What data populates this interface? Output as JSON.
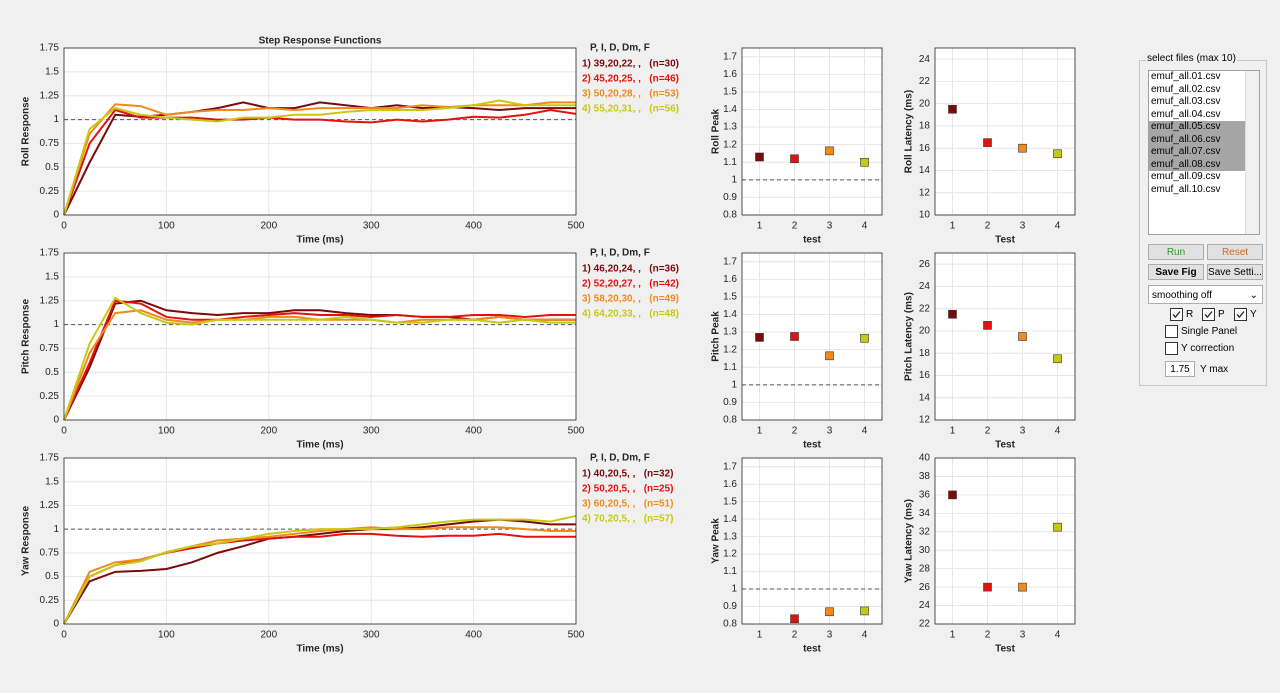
{
  "chart_data": [
    {
      "type": "line",
      "title": "Step Response Functions",
      "xlabel": "Time (ms)",
      "ylabel": "Roll Response",
      "legend_title": "P, I, D, Dm, F",
      "x": [
        0,
        25,
        50,
        75,
        100,
        125,
        150,
        175,
        200,
        225,
        250,
        275,
        300,
        325,
        350,
        375,
        400,
        425,
        450,
        475,
        500
      ],
      "series": [
        {
          "name": "1) 39,20,22, ,   (n=30)",
          "color": "#7b0a0a",
          "values": [
            0,
            0.55,
            1.05,
            1.03,
            1.05,
            1.08,
            1.12,
            1.18,
            1.12,
            1.12,
            1.18,
            1.15,
            1.12,
            1.15,
            1.12,
            1.13,
            1.12,
            1.1,
            1.12,
            1.12,
            1.12
          ]
        },
        {
          "name": "2) 45,20,25, ,   (n=46)",
          "color": "#e3120f",
          "values": [
            0,
            0.75,
            1.1,
            1.02,
            1.02,
            1.02,
            1.0,
            1.0,
            1.02,
            1.0,
            1.0,
            0.98,
            0.97,
            1.0,
            0.98,
            1.0,
            1.03,
            1.02,
            1.05,
            1.1,
            1.06
          ]
        },
        {
          "name": "3) 50,20,28, ,   (n=53)",
          "color": "#f08a1c",
          "values": [
            0,
            0.85,
            1.16,
            1.14,
            1.05,
            1.08,
            1.1,
            1.1,
            1.12,
            1.1,
            1.12,
            1.12,
            1.12,
            1.12,
            1.15,
            1.13,
            1.15,
            1.15,
            1.15,
            1.18,
            1.18
          ]
        },
        {
          "name": "4) 55,20,31, ,   (n=56)",
          "color": "#c8c814",
          "values": [
            0,
            0.9,
            1.12,
            1.05,
            1.02,
            1.0,
            0.98,
            1.02,
            1.02,
            1.05,
            1.05,
            1.08,
            1.1,
            1.1,
            1.1,
            1.12,
            1.15,
            1.2,
            1.15,
            1.15,
            1.15
          ]
        }
      ],
      "xlim": [
        0,
        500
      ],
      "ylim": [
        0,
        1.75
      ],
      "xticks": [
        0,
        100,
        200,
        300,
        400,
        500
      ],
      "yticks": [
        0,
        0.25,
        0.5,
        0.75,
        1,
        1.25,
        1.5,
        1.75
      ],
      "grid": true,
      "refline": 1
    },
    {
      "type": "line",
      "xlabel": "Time (ms)",
      "ylabel": "Pitch Response",
      "legend_title": "P, I, D, Dm, F",
      "x": [
        0,
        25,
        50,
        75,
        100,
        125,
        150,
        175,
        200,
        225,
        250,
        275,
        300,
        325,
        350,
        375,
        400,
        425,
        450,
        475,
        500
      ],
      "series": [
        {
          "name": "1) 46,20,24, ,   (n=36)",
          "color": "#7b0a0a",
          "values": [
            0,
            0.55,
            1.22,
            1.25,
            1.15,
            1.12,
            1.1,
            1.12,
            1.12,
            1.15,
            1.15,
            1.12,
            1.1,
            1.1,
            1.08,
            1.08,
            1.05,
            1.08,
            1.05,
            1.05,
            1.05
          ]
        },
        {
          "name": "2) 52,20,27, ,   (n=42)",
          "color": "#e3120f",
          "values": [
            0,
            0.6,
            1.25,
            1.22,
            1.08,
            1.05,
            1.05,
            1.08,
            1.1,
            1.12,
            1.1,
            1.1,
            1.08,
            1.1,
            1.08,
            1.08,
            1.1,
            1.1,
            1.08,
            1.1,
            1.1
          ]
        },
        {
          "name": "3) 58,20,30, ,   (n=49)",
          "color": "#f08a1c",
          "values": [
            0,
            0.7,
            1.12,
            1.15,
            1.05,
            1.02,
            1.05,
            1.05,
            1.08,
            1.08,
            1.05,
            1.05,
            1.05,
            1.02,
            1.05,
            1.05,
            1.05,
            1.08,
            1.05,
            1.05,
            1.05
          ]
        },
        {
          "name": "4) 64,20,33, ,   (n=48)",
          "color": "#c8c814",
          "values": [
            0,
            0.8,
            1.28,
            1.12,
            1.02,
            1.0,
            1.05,
            1.05,
            1.05,
            1.05,
            1.05,
            1.08,
            1.05,
            1.02,
            1.02,
            1.05,
            1.05,
            1.02,
            1.05,
            1.02,
            1.02
          ]
        }
      ],
      "xlim": [
        0,
        500
      ],
      "ylim": [
        0,
        1.75
      ],
      "xticks": [
        0,
        100,
        200,
        300,
        400,
        500
      ],
      "yticks": [
        0,
        0.25,
        0.5,
        0.75,
        1,
        1.25,
        1.5,
        1.75
      ],
      "grid": true,
      "refline": 1
    },
    {
      "type": "line",
      "xlabel": "Time (ms)",
      "ylabel": "Yaw Response",
      "legend_title": "P, I, D, Dm, F",
      "x": [
        0,
        25,
        50,
        75,
        100,
        125,
        150,
        175,
        200,
        225,
        250,
        275,
        300,
        325,
        350,
        375,
        400,
        425,
        450,
        475,
        500
      ],
      "series": [
        {
          "name": "1) 40,20,5, ,   (n=32)",
          "color": "#7b0a0a",
          "values": [
            0,
            0.45,
            0.55,
            0.56,
            0.58,
            0.65,
            0.75,
            0.82,
            0.9,
            0.92,
            0.95,
            0.98,
            1.0,
            1.0,
            1.02,
            1.05,
            1.08,
            1.1,
            1.08,
            1.05,
            1.05
          ]
        },
        {
          "name": "2) 50,20,5, ,   (n=25)",
          "color": "#e3120f",
          "values": [
            0,
            0.5,
            0.62,
            0.68,
            0.75,
            0.8,
            0.85,
            0.88,
            0.9,
            0.92,
            0.92,
            0.95,
            0.95,
            0.93,
            0.92,
            0.93,
            0.93,
            0.95,
            0.92,
            0.92,
            0.92
          ]
        },
        {
          "name": "3) 60,20,5, ,   (n=51)",
          "color": "#f08a1c",
          "values": [
            0,
            0.55,
            0.65,
            0.68,
            0.75,
            0.82,
            0.88,
            0.9,
            0.92,
            0.95,
            0.98,
            1.0,
            1.02,
            1.0,
            1.0,
            1.02,
            1.02,
            1.02,
            1.0,
            0.98,
            0.98
          ]
        },
        {
          "name": "4) 70,20,5, ,   (n=57)",
          "color": "#c8c814",
          "values": [
            0,
            0.5,
            0.62,
            0.66,
            0.76,
            0.82,
            0.85,
            0.9,
            0.95,
            0.98,
            1.0,
            1.0,
            1.0,
            1.02,
            1.05,
            1.08,
            1.1,
            1.1,
            1.1,
            1.08,
            1.14
          ]
        }
      ],
      "xlim": [
        0,
        500
      ],
      "ylim": [
        0,
        1.75
      ],
      "xticks": [
        0,
        100,
        200,
        300,
        400,
        500
      ],
      "yticks": [
        0,
        0.25,
        0.5,
        0.75,
        1,
        1.25,
        1.5,
        1.75
      ],
      "grid": true,
      "refline": 1
    },
    {
      "type": "scatter",
      "xlabel": "test",
      "ylabel": "Roll Peak",
      "x": [
        1,
        2,
        3,
        4
      ],
      "values": [
        1.13,
        1.12,
        1.165,
        1.1
      ],
      "colors": [
        "#7b0a0a",
        "#e3120f",
        "#f08a1c",
        "#c8c814"
      ],
      "xlim": [
        0.5,
        4.5
      ],
      "ylim": [
        0.8,
        1.75
      ],
      "xticks": [
        1,
        2,
        3,
        4
      ],
      "yticks": [
        0.8,
        0.9,
        1,
        1.1,
        1.2,
        1.3,
        1.4,
        1.5,
        1.6,
        1.7
      ],
      "grid": true,
      "refline": 1
    },
    {
      "type": "scatter",
      "xlabel": "Test",
      "ylabel": "Roll Latency (ms)",
      "x": [
        1,
        2,
        3,
        4
      ],
      "values": [
        19.5,
        16.5,
        16,
        15.5
      ],
      "colors": [
        "#7b0a0a",
        "#e3120f",
        "#f08a1c",
        "#c8c814"
      ],
      "xlim": [
        0.5,
        4.5
      ],
      "ylim": [
        10,
        25
      ],
      "xticks": [
        1,
        2,
        3,
        4
      ],
      "yticks": [
        10,
        12,
        14,
        16,
        18,
        20,
        22,
        24
      ],
      "grid": true
    },
    {
      "type": "scatter",
      "xlabel": "test",
      "ylabel": "Pitch Peak",
      "x": [
        1,
        2,
        3,
        4
      ],
      "values": [
        1.27,
        1.275,
        1.165,
        1.265
      ],
      "colors": [
        "#7b0a0a",
        "#e3120f",
        "#f08a1c",
        "#c8c814"
      ],
      "xlim": [
        0.5,
        4.5
      ],
      "ylim": [
        0.8,
        1.75
      ],
      "xticks": [
        1,
        2,
        3,
        4
      ],
      "yticks": [
        0.8,
        0.9,
        1,
        1.1,
        1.2,
        1.3,
        1.4,
        1.5,
        1.6,
        1.7
      ],
      "grid": true,
      "refline": 1
    },
    {
      "type": "scatter",
      "xlabel": "Test",
      "ylabel": "Pitch Latency (ms)",
      "x": [
        1,
        2,
        3,
        4
      ],
      "values": [
        21.5,
        20.5,
        19.5,
        17.5
      ],
      "colors": [
        "#7b0a0a",
        "#e3120f",
        "#f08a1c",
        "#c8c814"
      ],
      "xlim": [
        0.5,
        4.5
      ],
      "ylim": [
        12,
        27
      ],
      "xticks": [
        1,
        2,
        3,
        4
      ],
      "yticks": [
        12,
        14,
        16,
        18,
        20,
        22,
        24,
        26
      ],
      "grid": true
    },
    {
      "type": "scatter",
      "xlabel": "test",
      "ylabel": "Yaw Peak",
      "x": [
        1,
        2,
        3,
        4
      ],
      "values": [
        null,
        0.83,
        0.87,
        0.875
      ],
      "colors": [
        "#7b0a0a",
        "#e3120f",
        "#f08a1c",
        "#c8c814"
      ],
      "xlim": [
        0.5,
        4.5
      ],
      "ylim": [
        0.8,
        1.75
      ],
      "xticks": [
        1,
        2,
        3,
        4
      ],
      "yticks": [
        0.8,
        0.9,
        1,
        1.1,
        1.2,
        1.3,
        1.4,
        1.5,
        1.6,
        1.7
      ],
      "grid": true,
      "refline": 1
    },
    {
      "type": "scatter",
      "xlabel": "Test",
      "ylabel": "Yaw Latency (ms)",
      "x": [
        1,
        2,
        3,
        4
      ],
      "values": [
        36,
        26,
        26,
        32.5
      ],
      "colors": [
        "#7b0a0a",
        "#e3120f",
        "#f08a1c",
        "#c8c814"
      ],
      "xlim": [
        0.5,
        4.5
      ],
      "ylim": [
        22,
        40
      ],
      "xticks": [
        1,
        2,
        3,
        4
      ],
      "yticks": [
        22,
        24,
        26,
        28,
        30,
        32,
        34,
        36,
        38,
        40
      ],
      "grid": true
    }
  ],
  "panel": {
    "title": "select files (max 10)",
    "files": [
      {
        "name": "emuf_all.01.csv",
        "selected": false
      },
      {
        "name": "emuf_all.02.csv",
        "selected": false
      },
      {
        "name": "emuf_all.03.csv",
        "selected": false
      },
      {
        "name": "emuf_all.04.csv",
        "selected": false
      },
      {
        "name": "emuf_all.05.csv",
        "selected": true
      },
      {
        "name": "emuf_all.06.csv",
        "selected": true
      },
      {
        "name": "emuf_all.07.csv",
        "selected": true
      },
      {
        "name": "emuf_all.08.csv",
        "selected": true
      },
      {
        "name": "emuf_all.09.csv",
        "selected": false
      },
      {
        "name": "emuf_all.10.csv",
        "selected": false
      }
    ],
    "run": "Run",
    "reset": "Reset",
    "save_fig": "Save Fig",
    "save_settings": "Save Setti...",
    "smoothing": "smoothing off",
    "checkboxes": [
      {
        "label": "R",
        "checked": true
      },
      {
        "label": "P",
        "checked": true
      },
      {
        "label": "Y",
        "checked": true
      },
      {
        "label": "Single Panel",
        "checked": false
      },
      {
        "label": "Y correction",
        "checked": false
      }
    ],
    "ymax_value": 1.75,
    "ymax_label": "Y max"
  }
}
